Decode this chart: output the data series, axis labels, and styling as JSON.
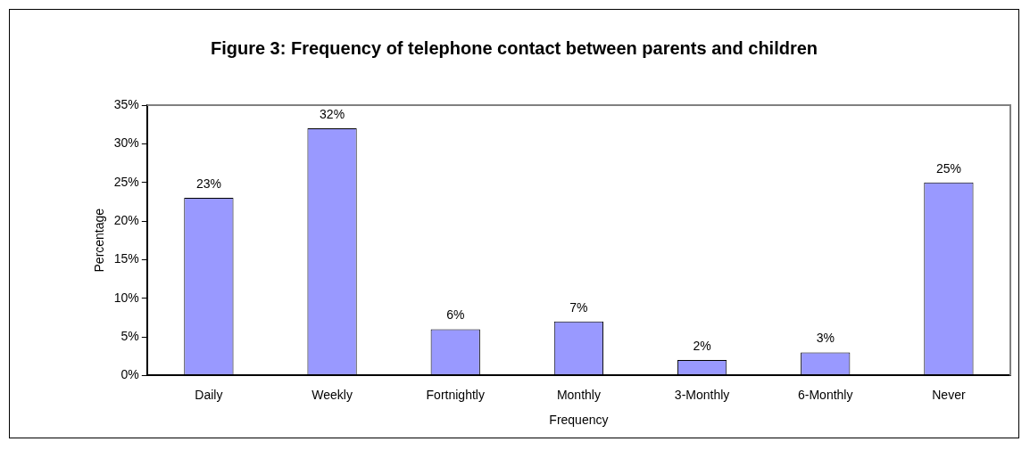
{
  "chart_data": {
    "type": "bar",
    "title": "Figure 3: Frequency of telephone contact between parents and children",
    "xlabel": "Frequency",
    "ylabel": "Percentage",
    "categories": [
      "Daily",
      "Weekly",
      "Fortnightly",
      "Monthly",
      "3-Monthly",
      "6-Monthly",
      "Never"
    ],
    "values": [
      23,
      32,
      6,
      7,
      2,
      3,
      25
    ],
    "value_labels": [
      "23%",
      "32%",
      "6%",
      "7%",
      "2%",
      "3%",
      "25%"
    ],
    "color": "#9999ff",
    "ylim": [
      0,
      35
    ],
    "yticks": [
      {
        "value": 0,
        "label": "0%"
      },
      {
        "value": 5,
        "label": "5%"
      },
      {
        "value": 10,
        "label": "10%"
      },
      {
        "value": 15,
        "label": "15%"
      },
      {
        "value": 20,
        "label": "20%"
      },
      {
        "value": 25,
        "label": "25%"
      },
      {
        "value": 30,
        "label": "30%"
      },
      {
        "value": 35,
        "label": "35%"
      }
    ],
    "grid": false,
    "legend": false
  }
}
